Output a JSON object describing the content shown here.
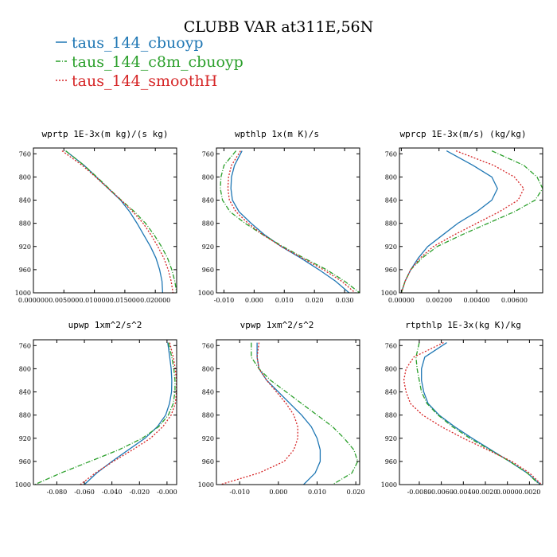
{
  "chart_data": {
    "title": "CLUBB VAR at311E,56N",
    "legend": [
      {
        "label": "taus_144_cbuoyp",
        "color": "#1f77b4",
        "dash": "solid"
      },
      {
        "label": "taus_144_c8m_cbuoyp",
        "color": "#2ca02c",
        "dash": "dashdot"
      },
      {
        "label": "taus_144_smoothH",
        "color": "#d62728",
        "dash": "dot"
      }
    ],
    "panels": [
      {
        "type": "line",
        "title": "wprtp  1E-3x(m kg)/(s kg)",
        "xlim": [
          0.0,
          0.0235
        ],
        "ylim": [
          1000,
          750
        ],
        "xticks": [
          0,
          0.005,
          0.01,
          0.015,
          0.02
        ],
        "xticklabels": [
          "0.000000",
          "0.005000",
          "0.010000",
          "0.015000",
          "0.020000"
        ],
        "yticks": [
          760,
          800,
          840,
          880,
          920,
          960,
          1000
        ],
        "yticklabels": [
          "760",
          "800",
          "840",
          "880",
          "920",
          "960",
          "1000"
        ],
        "levels": [
          755,
          780,
          800,
          820,
          840,
          860,
          880,
          900,
          920,
          940,
          960,
          980,
          1000
        ],
        "series": [
          {
            "name": "taus_144_cbuoyp",
            "values": [
              0.0053,
              0.0083,
              0.0103,
              0.0123,
              0.0143,
              0.0158,
              0.017,
              0.0181,
              0.0192,
              0.0201,
              0.0207,
              0.0211,
              0.0212
            ]
          },
          {
            "name": "taus_144_c8m_cbuoyp",
            "values": [
              0.0053,
              0.0083,
              0.0104,
              0.0124,
              0.0144,
              0.0166,
              0.0184,
              0.0198,
              0.021,
              0.022,
              0.0227,
              0.0232,
              0.0235
            ]
          },
          {
            "name": "taus_144_smoothH",
            "values": [
              0.0047,
              0.008,
              0.0102,
              0.0123,
              0.0144,
              0.0163,
              0.018,
              0.0193,
              0.0204,
              0.0214,
              0.0221,
              0.0226,
              0.0229
            ]
          }
        ]
      },
      {
        "type": "line",
        "title": "wpthlp  1x(m K)/s",
        "xlim": [
          -0.0125,
          0.035
        ],
        "ylim": [
          1000,
          750
        ],
        "xticks": [
          -0.01,
          0,
          0.01,
          0.02,
          0.03
        ],
        "xticklabels": [
          "-0.010",
          "0.000",
          "0.010",
          "0.020",
          "0.030"
        ],
        "yticks": [
          760,
          800,
          840,
          880,
          920,
          960,
          1000
        ],
        "yticklabels": [
          "760",
          "800",
          "840",
          "880",
          "920",
          "960",
          "1000"
        ],
        "levels": [
          755,
          780,
          800,
          820,
          840,
          860,
          880,
          900,
          920,
          940,
          960,
          980,
          1000
        ],
        "series": [
          {
            "name": "taus_144_cbuoyp",
            "values": [
              -0.004,
              -0.0065,
              -0.0075,
              -0.0077,
              -0.0072,
              -0.005,
              -0.001,
              0.0035,
              0.009,
              0.0155,
              0.0215,
              0.027,
              0.0315
            ]
          },
          {
            "name": "taus_144_c8m_cbuoyp",
            "values": [
              -0.006,
              -0.01,
              -0.011,
              -0.0112,
              -0.0105,
              -0.008,
              -0.003,
              0.003,
              0.0095,
              0.0165,
              0.024,
              0.03,
              0.035
            ]
          },
          {
            "name": "taus_144_smoothH",
            "values": [
              -0.0045,
              -0.0075,
              -0.0085,
              -0.0087,
              -0.0082,
              -0.006,
              -0.002,
              0.003,
              0.009,
              0.016,
              0.023,
              0.029,
              0.0335
            ]
          }
        ]
      },
      {
        "type": "line",
        "title": "wprcp  1E-3x(m/s) (kg/kg)",
        "xlim": [
          -0.0001,
          0.0075
        ],
        "ylim": [
          1000,
          750
        ],
        "xticks": [
          0,
          0.002,
          0.004,
          0.006
        ],
        "xticklabels": [
          "0.00000",
          "0.00200",
          "0.00400",
          "0.00600"
        ],
        "yticks": [
          760,
          800,
          840,
          880,
          920,
          960,
          1000
        ],
        "yticklabels": [
          "760",
          "800",
          "840",
          "880",
          "920",
          "960",
          "1000"
        ],
        "levels": [
          755,
          780,
          800,
          820,
          840,
          860,
          880,
          900,
          920,
          940,
          960,
          980,
          1000
        ],
        "series": [
          {
            "name": "taus_144_cbuoyp",
            "values": [
              0.0024,
              0.0038,
              0.0048,
              0.0051,
              0.0048,
              0.004,
              0.003,
              0.0022,
              0.0014,
              0.0009,
              0.0005,
              0.0002,
              0.0
            ]
          },
          {
            "name": "taus_144_c8m_cbuoyp",
            "values": [
              0.0048,
              0.0065,
              0.0072,
              0.0075,
              0.0071,
              0.006,
              0.0046,
              0.0032,
              0.0019,
              0.0011,
              0.0005,
              0.0002,
              0.0
            ]
          },
          {
            "name": "taus_144_smoothH",
            "values": [
              0.0029,
              0.0049,
              0.006,
              0.0065,
              0.0062,
              0.0052,
              0.004,
              0.0028,
              0.0017,
              0.001,
              0.0005,
              0.0002,
              0.0
            ]
          }
        ]
      },
      {
        "type": "line",
        "title": "upwp  1xm^2/s^2",
        "xlim": [
          -0.097,
          0.007
        ],
        "ylim": [
          1000,
          750
        ],
        "xticks": [
          -0.08,
          -0.06,
          -0.04,
          -0.02,
          0
        ],
        "xticklabels": [
          "-0.080",
          "-0.060",
          "-0.040",
          "-0.020",
          "-0.000"
        ],
        "yticks": [
          760,
          800,
          840,
          880,
          920,
          960,
          1000
        ],
        "yticklabels": [
          "760",
          "800",
          "840",
          "880",
          "920",
          "960",
          "1000"
        ],
        "levels": [
          755,
          780,
          800,
          820,
          840,
          860,
          880,
          900,
          920,
          940,
          960,
          980,
          1000
        ],
        "series": [
          {
            "name": "taus_144_cbuoyp",
            "values": [
              0.0005,
              0.002,
              0.003,
              0.0035,
              0.0033,
              0.0018,
              -0.001,
              -0.007,
              -0.016,
              -0.028,
              -0.04,
              -0.051,
              -0.06
            ]
          },
          {
            "name": "taus_144_c8m_cbuoyp",
            "values": [
              0.001,
              0.0035,
              0.005,
              0.0058,
              0.0058,
              0.0045,
              0.001,
              -0.006,
              -0.018,
              -0.035,
              -0.056,
              -0.077,
              -0.096
            ]
          },
          {
            "name": "taus_144_smoothH",
            "values": [
              0.002,
              0.0045,
              0.006,
              0.0068,
              0.0068,
              0.006,
              0.003,
              -0.003,
              -0.012,
              -0.025,
              -0.039,
              -0.052,
              -0.063
            ]
          }
        ]
      },
      {
        "type": "line",
        "title": "vpwp  1xm^2/s^2",
        "xlim": [
          -0.016,
          0.021
        ],
        "ylim": [
          1000,
          750
        ],
        "xticks": [
          -0.01,
          0,
          0.01,
          0.02
        ],
        "xticklabels": [
          "-0.010",
          "0.000",
          "0.010",
          "0.020"
        ],
        "yticks": [
          760,
          800,
          840,
          880,
          920,
          960,
          1000
        ],
        "yticklabels": [
          "760",
          "800",
          "840",
          "880",
          "920",
          "960",
          "1000"
        ],
        "levels": [
          755,
          780,
          800,
          820,
          840,
          860,
          880,
          900,
          920,
          940,
          960,
          980,
          1000
        ],
        "series": [
          {
            "name": "taus_144_cbuoyp",
            "values": [
              -0.0055,
              -0.0055,
              -0.005,
              -0.003,
              0.0,
              0.003,
              0.006,
              0.0085,
              0.01,
              0.0108,
              0.0108,
              0.0095,
              0.0065
            ]
          },
          {
            "name": "taus_144_c8m_cbuoyp",
            "values": [
              -0.007,
              -0.007,
              -0.005,
              -0.002,
              0.002,
              0.006,
              0.01,
              0.014,
              0.017,
              0.0195,
              0.0205,
              0.019,
              0.014
            ]
          },
          {
            "name": "taus_144_smoothH",
            "values": [
              -0.005,
              -0.0055,
              -0.005,
              -0.003,
              -0.0005,
              0.002,
              0.004,
              0.005,
              0.005,
              0.004,
              0.0015,
              -0.005,
              -0.015
            ]
          }
        ]
      },
      {
        "type": "line",
        "title": "rtpthlp  1E-3x(kg K)/kg",
        "xlim": [
          -0.0098,
          0.0032
        ],
        "ylim": [
          1000,
          750
        ],
        "xticks": [
          -0.008,
          -0.006,
          -0.004,
          -0.002,
          0,
          0.002
        ],
        "xticklabels": [
          "-0.0080",
          "-0.0060",
          "-0.0040",
          "-0.0020",
          "0.0000",
          "0.0020"
        ],
        "yticks": [
          760,
          800,
          840,
          880,
          920,
          960,
          1000
        ],
        "yticklabels": [
          "760",
          "800",
          "840",
          "880",
          "920",
          "960",
          "1000"
        ],
        "levels": [
          755,
          780,
          800,
          820,
          840,
          860,
          880,
          900,
          920,
          940,
          960,
          980,
          1000
        ],
        "series": [
          {
            "name": "taus_144_cbuoyp",
            "values": [
              -0.0055,
              -0.0075,
              -0.0078,
              -0.0078,
              -0.0076,
              -0.0072,
              -0.0062,
              -0.0048,
              -0.0032,
              -0.0015,
              0.0002,
              0.0018,
              0.003
            ]
          },
          {
            "name": "taus_144_c8m_cbuoyp",
            "values": [
              -0.008,
              -0.0083,
              -0.0082,
              -0.008,
              -0.0078,
              -0.0073,
              -0.0063,
              -0.005,
              -0.0034,
              -0.0016,
              0.0002,
              0.0018,
              0.0029
            ]
          },
          {
            "name": "taus_144_smoothH",
            "values": [
              -0.0058,
              -0.0085,
              -0.0092,
              -0.0094,
              -0.0092,
              -0.0088,
              -0.0077,
              -0.006,
              -0.004,
              -0.0018,
              0.0004,
              0.002,
              0.0031
            ]
          }
        ]
      }
    ]
  }
}
